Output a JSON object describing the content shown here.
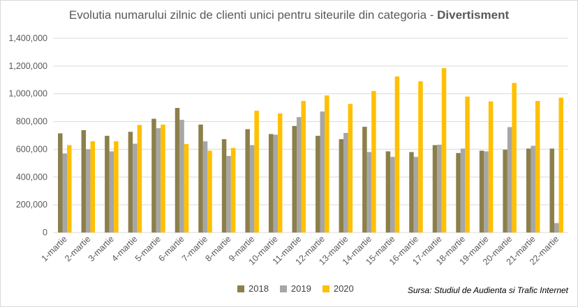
{
  "title": {
    "prefix": "Evolutia numarului zilnic de clienti unici pentru siteurile din categoria - ",
    "emphasis": "Divertisment"
  },
  "source": "Sursa: Studiul de Audienta si Trafic Internet",
  "chart_data": {
    "type": "bar",
    "title": "Evolutia numarului zilnic de clienti unici pentru siteurile din categoria - Divertisment",
    "xlabel": "",
    "ylabel": "",
    "ylim": [
      0,
      1400000
    ],
    "yticks": [
      0,
      200000,
      400000,
      600000,
      800000,
      1000000,
      1200000,
      1400000
    ],
    "ytick_labels": [
      "0",
      "200,000",
      "400,000",
      "600,000",
      "800,000",
      "1,000,000",
      "1,200,000",
      "1,400,000"
    ],
    "grid": true,
    "legend_position": "bottom",
    "categories": [
      "1-martie",
      "2-martie",
      "3-martie",
      "4-martie",
      "5-martie",
      "6-martie",
      "7-martie",
      "8-martie",
      "9-martie",
      "10-martie",
      "11-martie",
      "12-martie",
      "13-martie",
      "14-martie",
      "15-martie",
      "16-martie",
      "17-martie",
      "18-martie",
      "19-martie",
      "20-martie",
      "21-martie",
      "22-martie"
    ],
    "series": [
      {
        "name": "2018",
        "color": "#8c7f4a",
        "values": [
          715000,
          738000,
          697000,
          726000,
          820000,
          898000,
          778000,
          673000,
          745000,
          710000,
          768000,
          697000,
          673000,
          762000,
          585000,
          580000,
          630000,
          573000,
          590000,
          597000,
          605000,
          605000
        ]
      },
      {
        "name": "2019",
        "color": "#a6a6a6",
        "values": [
          570000,
          600000,
          585000,
          640000,
          752000,
          812000,
          657000,
          552000,
          630000,
          705000,
          832000,
          872000,
          718000,
          580000,
          545000,
          545000,
          633000,
          605000,
          585000,
          760000,
          625000,
          68000
        ]
      },
      {
        "name": "2020",
        "color": "#ffc000",
        "values": [
          630000,
          658000,
          658000,
          775000,
          778000,
          638000,
          590000,
          610000,
          878000,
          858000,
          948000,
          988000,
          927000,
          1020000,
          1125000,
          1090000,
          1185000,
          980000,
          945000,
          1078000,
          948000,
          972000
        ]
      }
    ]
  }
}
